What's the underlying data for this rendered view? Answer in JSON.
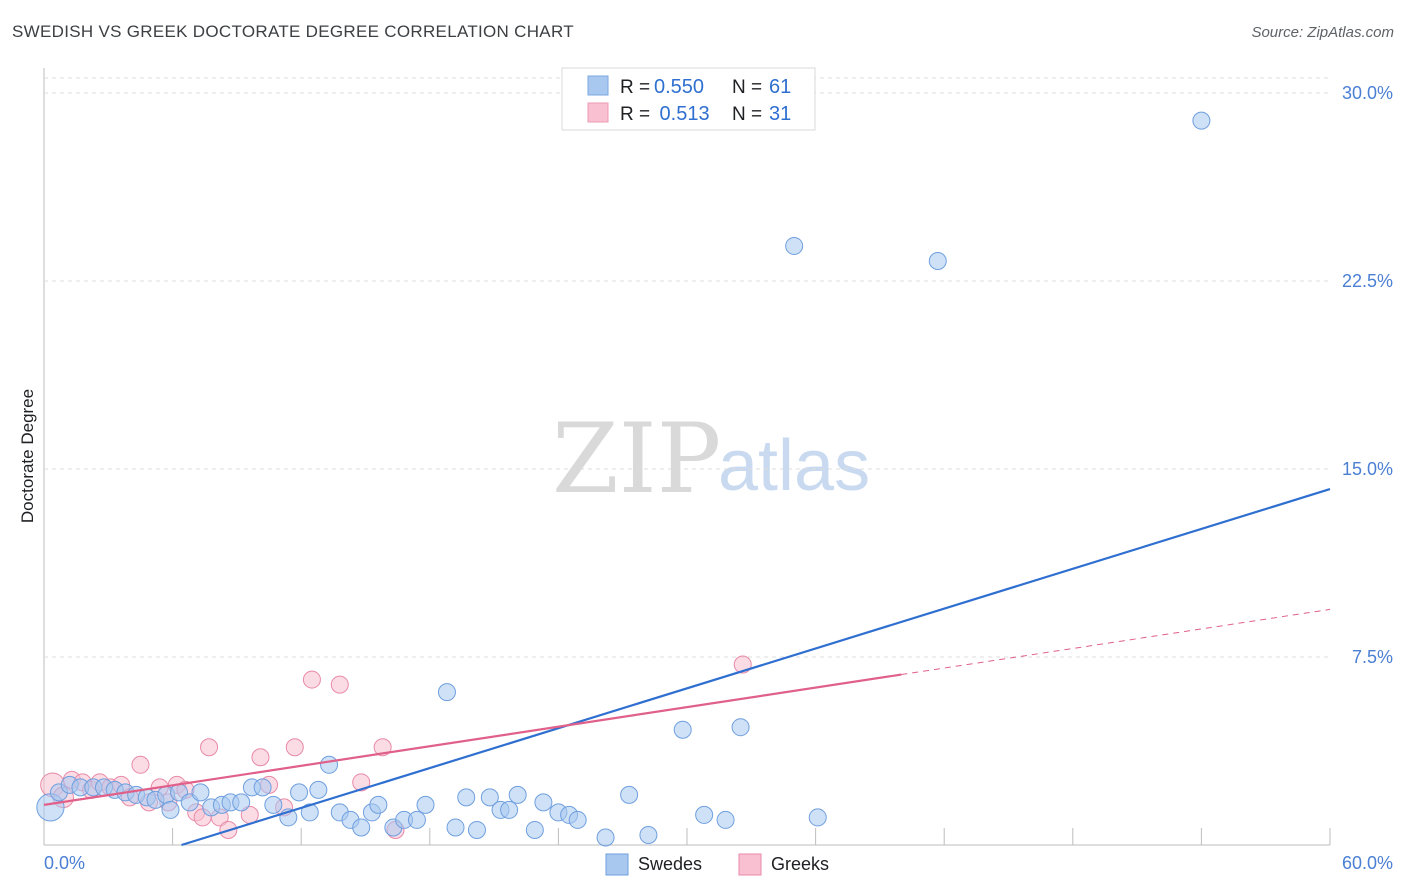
{
  "header": {
    "title": "SWEDISH VS GREEK DOCTORATE DEGREE CORRELATION CHART",
    "source": "Source: ZipAtlas.com"
  },
  "watermark": {
    "zip": "ZIP",
    "atlas": "atlas"
  },
  "legend": {
    "rows": [
      {
        "r_label": "R = ",
        "r_value": "0.550",
        "n_label": "N = ",
        "n_value": "61",
        "color": "#a8c8f0",
        "stroke": "#7aa7e0"
      },
      {
        "r_label": "R = ",
        "r_value": " 0.513",
        "n_label": "N = ",
        "n_value": "31",
        "color": "#f8c0d0",
        "stroke": "#ec9ab2"
      }
    ]
  },
  "bottom_legend": {
    "swedes": "Swedes",
    "greeks": "Greeks"
  },
  "colors": {
    "swedes_fill": "#a8c8f0",
    "swedes_stroke": "#6f9fde",
    "swedes_line": "#2f6fd0",
    "greeks_fill": "#f8c0d0",
    "greeks_stroke": "#e88aa8",
    "greeks_line": "#e0608a",
    "tick": "#4a7fd4",
    "grid": "#dcdcdc"
  },
  "chart_data": {
    "type": "scatter",
    "title": "SWEDISH VS GREEK DOCTORATE DEGREE CORRELATION CHART",
    "xlabel": "",
    "ylabel": "Doctorate Degree",
    "xlim": [
      0,
      60
    ],
    "ylim": [
      0,
      30.6
    ],
    "x_tick_labels": [
      "0.0%",
      "60.0%"
    ],
    "y_ticks": [
      7.5,
      15.0,
      22.5,
      30.0
    ],
    "y_tick_labels": [
      "7.5%",
      "15.0%",
      "22.5%",
      "30.0%"
    ],
    "grid": "horizontal dashed",
    "series": [
      {
        "name": "Swedes",
        "r": 0.55,
        "n": 61,
        "points": [
          [
            0.3,
            1.5
          ],
          [
            0.7,
            2.1
          ],
          [
            1.2,
            2.4
          ],
          [
            1.7,
            2.3
          ],
          [
            2.3,
            2.3
          ],
          [
            2.8,
            2.3
          ],
          [
            3.3,
            2.2
          ],
          [
            3.8,
            2.1
          ],
          [
            4.3,
            2.0
          ],
          [
            4.8,
            1.9
          ],
          [
            5.2,
            1.8
          ],
          [
            5.7,
            2.0
          ],
          [
            5.9,
            1.4
          ],
          [
            6.3,
            2.1
          ],
          [
            6.8,
            1.7
          ],
          [
            7.3,
            2.1
          ],
          [
            7.8,
            1.5
          ],
          [
            8.3,
            1.6
          ],
          [
            8.7,
            1.7
          ],
          [
            9.2,
            1.7
          ],
          [
            9.7,
            2.3
          ],
          [
            10.2,
            2.3
          ],
          [
            10.7,
            1.6
          ],
          [
            11.4,
            1.1
          ],
          [
            11.9,
            2.1
          ],
          [
            12.4,
            1.3
          ],
          [
            12.8,
            2.2
          ],
          [
            13.3,
            3.2
          ],
          [
            13.8,
            1.3
          ],
          [
            14.3,
            1.0
          ],
          [
            14.8,
            0.7
          ],
          [
            15.3,
            1.3
          ],
          [
            15.6,
            1.6
          ],
          [
            16.3,
            0.7
          ],
          [
            16.8,
            1.0
          ],
          [
            17.4,
            1.0
          ],
          [
            17.8,
            1.6
          ],
          [
            18.8,
            6.1
          ],
          [
            19.2,
            0.7
          ],
          [
            19.7,
            1.9
          ],
          [
            20.2,
            0.6
          ],
          [
            20.8,
            1.9
          ],
          [
            21.3,
            1.4
          ],
          [
            21.7,
            1.4
          ],
          [
            22.1,
            2.0
          ],
          [
            22.9,
            0.6
          ],
          [
            23.3,
            1.7
          ],
          [
            24.0,
            1.3
          ],
          [
            24.5,
            1.2
          ],
          [
            24.9,
            1.0
          ],
          [
            26.2,
            0.3
          ],
          [
            27.3,
            2.0
          ],
          [
            28.2,
            0.4
          ],
          [
            29.8,
            4.6
          ],
          [
            30.8,
            1.2
          ],
          [
            31.8,
            1.0
          ],
          [
            32.5,
            4.7
          ],
          [
            35.0,
            23.9
          ],
          [
            36.1,
            1.1
          ],
          [
            41.7,
            23.3
          ],
          [
            54.0,
            28.9
          ]
        ],
        "sizes": [
          1.6,
          1.0,
          1.0,
          1.0,
          1.0,
          1.0,
          1.0,
          1.0,
          1.0,
          1.0,
          1.0,
          1.0,
          1.0,
          1.0,
          1.0,
          1.0,
          1.0,
          1.0,
          1.0,
          1.0,
          1.0,
          1.0,
          1.0,
          1.0,
          1.0,
          1.0,
          1.0,
          1.0,
          1.0,
          1.0,
          1.0,
          1.0,
          1.0,
          1.0,
          1.0,
          1.0,
          1.0,
          1.0,
          1.0,
          1.0,
          1.0,
          1.0,
          1.0,
          1.0,
          1.0,
          1.0,
          1.0,
          1.0,
          1.0,
          1.0,
          1.0,
          1.0,
          1.0,
          1.0,
          1.0,
          1.0,
          1.0,
          1.0,
          1.0,
          1.0,
          1.0
        ],
        "trend": {
          "x": [
            0,
            60
          ],
          "y": [
            -1.7,
            14.2
          ]
        }
      },
      {
        "name": "Greeks",
        "r": 0.513,
        "n": 31,
        "points": [
          [
            0.4,
            2.4
          ],
          [
            0.9,
            1.9
          ],
          [
            1.3,
            2.6
          ],
          [
            1.8,
            2.5
          ],
          [
            2.2,
            2.2
          ],
          [
            2.6,
            2.5
          ],
          [
            3.1,
            2.3
          ],
          [
            3.6,
            2.4
          ],
          [
            4.0,
            1.9
          ],
          [
            4.5,
            3.2
          ],
          [
            4.9,
            1.7
          ],
          [
            5.4,
            2.3
          ],
          [
            5.8,
            1.7
          ],
          [
            6.2,
            2.4
          ],
          [
            6.6,
            2.2
          ],
          [
            7.1,
            1.3
          ],
          [
            7.4,
            1.1
          ],
          [
            7.7,
            3.9
          ],
          [
            8.2,
            1.1
          ],
          [
            8.6,
            0.6
          ],
          [
            9.6,
            1.2
          ],
          [
            10.1,
            3.5
          ],
          [
            10.5,
            2.4
          ],
          [
            11.2,
            1.5
          ],
          [
            11.7,
            3.9
          ],
          [
            12.5,
            6.6
          ],
          [
            13.8,
            6.4
          ],
          [
            14.8,
            2.5
          ],
          [
            15.8,
            3.9
          ],
          [
            16.4,
            0.6
          ],
          [
            32.6,
            7.2
          ]
        ],
        "sizes": [
          1.4,
          1.2,
          1.0,
          1.0,
          1.0,
          1.0,
          1.0,
          1.0,
          1.0,
          1.0,
          1.0,
          1.0,
          1.0,
          1.0,
          1.0,
          1.0,
          1.0,
          1.0,
          1.0,
          1.0,
          1.0,
          1.0,
          1.0,
          1.0,
          1.0,
          1.0,
          1.0,
          1.0,
          1.0,
          1.0,
          1.0
        ],
        "trend": {
          "x": [
            0,
            40
          ],
          "y": [
            1.6,
            6.8
          ]
        },
        "trend_extension": {
          "x": [
            40,
            60
          ],
          "y": [
            6.8,
            9.4
          ]
        }
      }
    ]
  }
}
